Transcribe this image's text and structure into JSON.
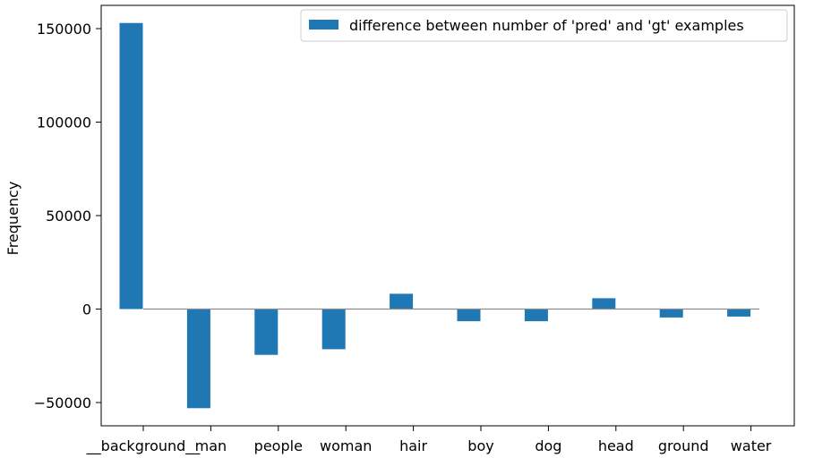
{
  "chart_data": {
    "type": "bar",
    "title": "",
    "xlabel": "",
    "ylabel": "Frequency",
    "categories": [
      "__background__",
      "man",
      "people",
      "woman",
      "hair",
      "boy",
      "dog",
      "head",
      "ground",
      "water"
    ],
    "series": [
      {
        "name": "difference between number of 'pred' and 'gt' examples",
        "color": "#1f77b4",
        "values": [
          153000,
          -53000,
          -24500,
          -21500,
          8200,
          -6500,
          -6500,
          5800,
          -4500,
          -4000
        ]
      }
    ],
    "ylim": [
      -63000,
      165000
    ],
    "yticks": [
      -50000,
      0,
      50000,
      100000,
      150000
    ],
    "ytick_labels": [
      "−50000",
      "0",
      "50000",
      "100000",
      "150000"
    ],
    "zero_line": true,
    "grid": false,
    "legend_position": "top-right"
  }
}
